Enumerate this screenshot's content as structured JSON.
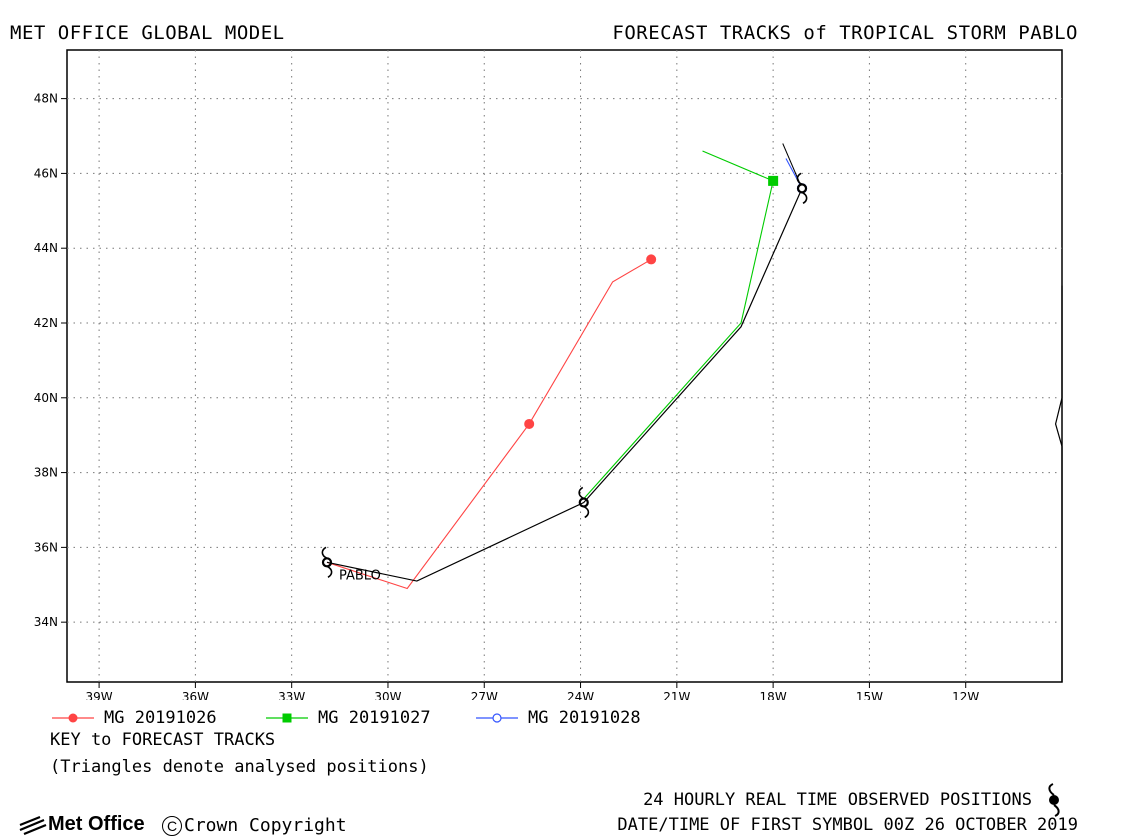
{
  "header": {
    "left_title": "MET OFFICE GLOBAL MODEL",
    "right_title": "FORECAST TRACKS of TROPICAL STORM PABLO"
  },
  "map": {
    "lon_range": [
      -40,
      -9
    ],
    "lat_range": [
      32.4,
      49.3
    ],
    "lon_ticks": [
      -39,
      -36,
      -33,
      -30,
      -27,
      -24,
      -21,
      -18,
      -15,
      -12
    ],
    "lon_tick_labels": [
      "39W",
      "36W",
      "33W",
      "30W",
      "27W",
      "24W",
      "21W",
      "18W",
      "15W",
      "12W"
    ],
    "lat_ticks": [
      34,
      36,
      38,
      40,
      42,
      44,
      46,
      48
    ],
    "lat_tick_labels": [
      "34N",
      "36N",
      "38N",
      "40N",
      "42N",
      "44N",
      "46N",
      "48N"
    ],
    "grid": "dotted",
    "storm_label": "PABLO",
    "observed_track": {
      "color": "#000000",
      "points": [
        [
          -31.9,
          35.6
        ],
        [
          -29.1,
          35.1
        ],
        [
          -23.9,
          37.2
        ],
        [
          -19.0,
          41.9
        ],
        [
          -17.1,
          45.6
        ]
      ]
    },
    "forecast_tracks": [
      {
        "name": "MG 20191026",
        "color": "#ff4444",
        "marker": "filled-circle",
        "points": [
          [
            -31.9,
            35.6
          ],
          [
            -29.4,
            34.9
          ],
          [
            -25.6,
            39.3
          ],
          [
            -23.0,
            43.1
          ],
          [
            -21.8,
            43.7
          ]
        ],
        "marker_points": [
          [
            -25.6,
            39.3
          ],
          [
            -21.8,
            43.7
          ]
        ]
      },
      {
        "name": "MG 20191027",
        "color": "#00cc00",
        "marker": "filled-square",
        "points": [
          [
            -23.9,
            37.3
          ],
          [
            -19.0,
            42.0
          ],
          [
            -18.0,
            45.8
          ],
          [
            -20.2,
            46.6
          ]
        ],
        "marker_points": [
          [
            -18.0,
            45.8
          ]
        ]
      },
      {
        "name": "MG 20191028",
        "color": "#3355ff",
        "marker": "open-circle",
        "points": [
          [
            -17.1,
            45.6
          ],
          [
            -17.6,
            46.4
          ]
        ],
        "marker_points": [
          [
            -17.1,
            45.6
          ]
        ]
      }
    ],
    "black_spur": [
      [
        -17.1,
        45.6
      ],
      [
        -17.7,
        46.8
      ]
    ],
    "coast_points": [
      [
        -9.0,
        43.0
      ],
      [
        -9.0,
        40.0
      ],
      [
        -9.2,
        39.3
      ],
      [
        -9.0,
        38.7
      ],
      [
        -9.0,
        32.4
      ]
    ]
  },
  "legend": {
    "items": [
      {
        "label": "MG 20191026",
        "color": "#ff4444",
        "marker": "filled-circle"
      },
      {
        "label": "MG 20191027",
        "color": "#00cc00",
        "marker": "filled-square"
      },
      {
        "label": "MG 20191028",
        "color": "#3355ff",
        "marker": "open-circle"
      }
    ],
    "key_title": "KEY to FORECAST TRACKS",
    "key_note": "(Triangles denote analysed positions)"
  },
  "footer": {
    "observed_text": "24 HOURLY REAL TIME OBSERVED POSITIONS",
    "datetime_text": "DATE/TIME OF FIRST SYMBOL 00Z 26 OCTOBER 2019",
    "logo_text": "Met Office",
    "copyright_symbol": "C",
    "copyright_text": "Crown Copyright"
  }
}
